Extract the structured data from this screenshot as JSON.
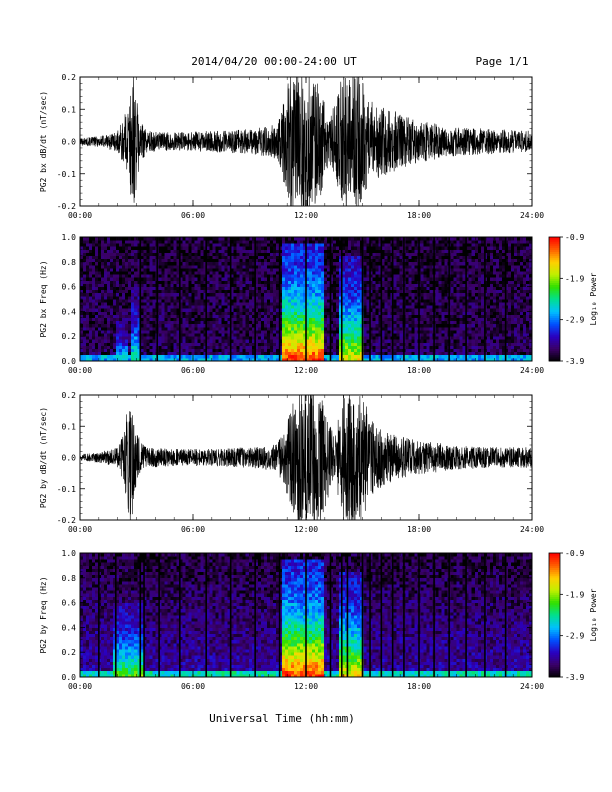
{
  "header": {
    "title": "2014/04/20  00:00-24:00 UT",
    "page": "Page 1/1"
  },
  "xlabel": "Universal Time (hh:mm)",
  "colorbar": {
    "label": "Log₁₀ Power",
    "ticks": [
      "-0.9",
      "-1.9",
      "-2.9",
      "-3.9"
    ],
    "range": [
      -3.9,
      -0.9
    ],
    "colors": [
      "#000000",
      "#3a0066",
      "#2a00c0",
      "#0050ff",
      "#00c0ff",
      "#00e090",
      "#30e000",
      "#c0f000",
      "#ffd000",
      "#ff6000",
      "#ff0000"
    ]
  },
  "chart_data": [
    {
      "type": "line",
      "title": "",
      "ylabel": "PG2 bx dB/dt (nT/sec)",
      "x_ticks": [
        "00:00",
        "06:00",
        "12:00",
        "18:00",
        "24:00"
      ],
      "xlim": [
        0,
        24
      ],
      "y_ticks": [
        "0.2",
        "0.1",
        "0.0",
        "-0.1",
        "-0.2"
      ],
      "ylim": [
        -0.2,
        0.2
      ],
      "envelope": {
        "x_hours": [
          0,
          1,
          2,
          2.5,
          2.8,
          3.2,
          3.6,
          5,
          7,
          9,
          10.5,
          11.2,
          11.7,
          12.2,
          12.8,
          13.2,
          13.6,
          14.0,
          14.4,
          14.8,
          15.3,
          16.0,
          17,
          18,
          20,
          22,
          24
        ],
        "amplitude": [
          0.01,
          0.015,
          0.03,
          0.09,
          0.2,
          0.06,
          0.03,
          0.025,
          0.03,
          0.035,
          0.05,
          0.2,
          0.2,
          0.2,
          0.15,
          0.06,
          0.12,
          0.2,
          0.2,
          0.2,
          0.12,
          0.1,
          0.08,
          0.06,
          0.04,
          0.035,
          0.03
        ]
      }
    },
    {
      "type": "heatmap",
      "title": "",
      "ylabel": "PG2 bx Freq (Hz)",
      "x_ticks": [
        "00:00",
        "06:00",
        "12:00",
        "18:00",
        "24:00"
      ],
      "xlim": [
        0,
        24
      ],
      "y_ticks": [
        "1.0",
        "0.8",
        "0.6",
        "0.4",
        "0.2",
        "0.0"
      ],
      "ylim": [
        0,
        1.0
      ],
      "value_range": [
        -3.9,
        -0.9
      ],
      "bursts": [
        {
          "t0": 1.9,
          "t1": 2.5,
          "fmax": 0.35,
          "peak": -2.5
        },
        {
          "t0": 2.7,
          "t1": 3.2,
          "fmax": 0.6,
          "peak": -2.3
        },
        {
          "t0": 10.8,
          "t1": 13.0,
          "fmax": 0.95,
          "peak": -1.0
        },
        {
          "t0": 13.8,
          "t1": 15.0,
          "fmax": 0.85,
          "peak": -1.6
        }
      ],
      "gaps_hours": [
        3.2,
        4.1,
        5.3,
        6.7,
        8.0,
        9.3,
        10.6,
        12.0,
        13.3,
        13.9,
        15.0,
        15.4,
        16.0,
        16.6,
        17.2,
        18.0,
        18.8,
        19.6,
        20.5,
        21.5,
        22.6
      ]
    },
    {
      "type": "line",
      "title": "",
      "ylabel": "PG2 by dB/dt (nT/sec)",
      "x_ticks": [
        "00:00",
        "06:00",
        "12:00",
        "18:00",
        "24:00"
      ],
      "xlim": [
        0,
        24
      ],
      "y_ticks": [
        "0.2",
        "0.1",
        "0.0",
        "-0.1",
        "-0.2"
      ],
      "ylim": [
        -0.2,
        0.2
      ],
      "envelope": {
        "x_hours": [
          0,
          1,
          2,
          2.3,
          2.7,
          3.0,
          3.5,
          5,
          7,
          9,
          10.5,
          11.0,
          11.6,
          12.2,
          12.8,
          13.2,
          13.5,
          14.0,
          14.5,
          15.0,
          15.6,
          16.2,
          17,
          18,
          20,
          22,
          24
        ],
        "amplitude": [
          0.01,
          0.015,
          0.03,
          0.08,
          0.2,
          0.07,
          0.03,
          0.025,
          0.025,
          0.03,
          0.04,
          0.12,
          0.2,
          0.2,
          0.2,
          0.12,
          0.05,
          0.2,
          0.2,
          0.18,
          0.1,
          0.08,
          0.06,
          0.05,
          0.035,
          0.03,
          0.03
        ]
      }
    },
    {
      "type": "heatmap",
      "title": "",
      "ylabel": "PG2 by Freq (Hz)",
      "x_ticks": [
        "00:00",
        "06:00",
        "12:00",
        "18:00",
        "24:00"
      ],
      "xlim": [
        0,
        24
      ],
      "y_ticks": [
        "1.0",
        "0.8",
        "0.6",
        "0.4",
        "0.2",
        "0.0"
      ],
      "ylim": [
        0,
        1.0
      ],
      "value_range": [
        -3.9,
        -0.9
      ],
      "bursts": [
        {
          "t0": 1.8,
          "t1": 3.3,
          "fmax": 0.6,
          "peak": -2.0
        },
        {
          "t0": 10.8,
          "t1": 13.0,
          "fmax": 0.95,
          "peak": -1.0
        },
        {
          "t0": 13.8,
          "t1": 15.0,
          "fmax": 0.85,
          "peak": -1.5
        }
      ],
      "gaps_hours": [
        1.0,
        1.9,
        3.2,
        3.4,
        4.2,
        5.3,
        6.7,
        8.0,
        9.3,
        10.6,
        12.0,
        13.3,
        13.9,
        14.2,
        15.0,
        15.4,
        16.0,
        16.6,
        17.2,
        18.0,
        18.8,
        19.6,
        20.5,
        21.5,
        22.6
      ]
    }
  ]
}
